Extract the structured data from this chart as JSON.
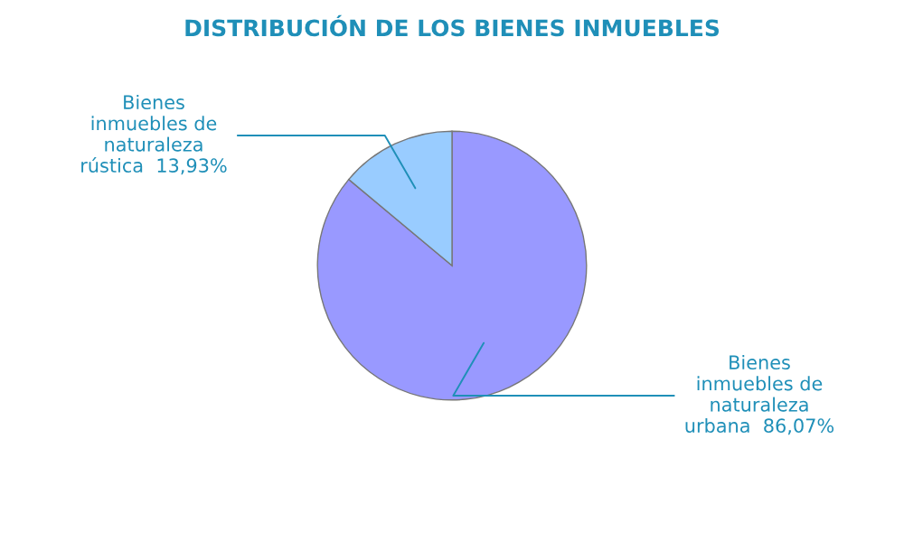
{
  "chart_data": {
    "type": "pie",
    "title": "DISTRIBUCIÓN DE LOS BIENES INMUEBLES",
    "categories": [
      "Bienes\ninmuebles de\nnaturaleza\nurbana",
      "Bienes\ninmuebles de\nnaturaleza\nrústica"
    ],
    "values": [
      86.07,
      13.93
    ],
    "colors": [
      "#9999ff",
      "#99ccff"
    ],
    "value_labels": [
      "86,07%",
      "13,93%"
    ],
    "legend": false
  }
}
